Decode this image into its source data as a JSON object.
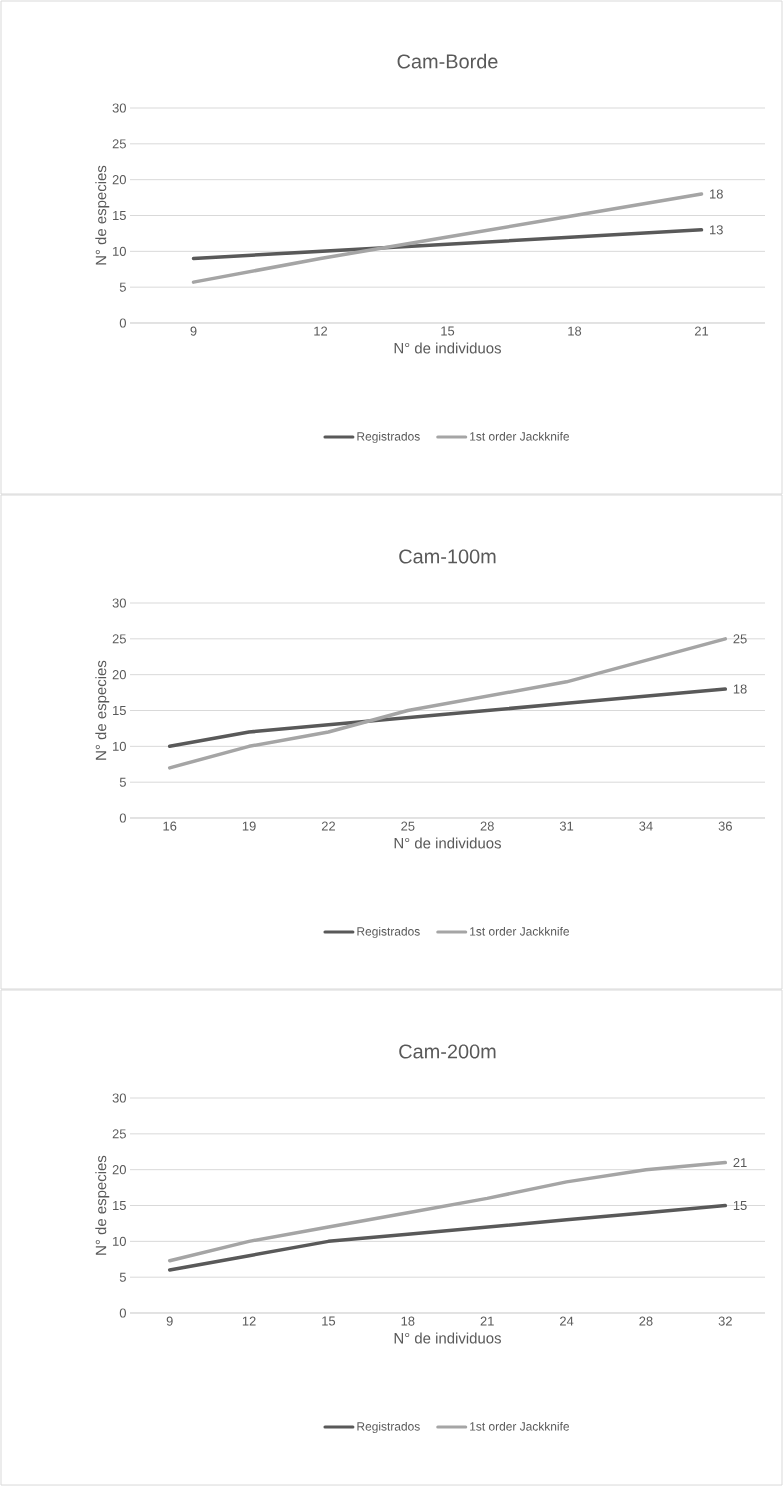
{
  "chart_data": [
    {
      "type": "line",
      "title": "Cam-Borde",
      "xlabel": "N° de individuos",
      "ylabel": "N° de especies",
      "categories": [
        "9",
        "12",
        "15",
        "18",
        "21"
      ],
      "ylim": [
        0,
        30
      ],
      "yticks": [
        0,
        5,
        10,
        15,
        20,
        25,
        30
      ],
      "grid": "y",
      "legend": "bottom",
      "series": [
        {
          "name": "Registrados",
          "color": "#595959",
          "values": [
            9,
            10,
            11,
            12,
            13
          ],
          "value_labels": [
            null,
            null,
            null,
            null,
            "13"
          ]
        },
        {
          "name": "1st order Jackknife",
          "color": "#a5a5a5",
          "values": [
            5.7,
            9,
            12,
            15,
            18
          ],
          "value_labels": [
            null,
            null,
            null,
            null,
            "18"
          ]
        }
      ]
    },
    {
      "type": "line",
      "title": "Cam-100m",
      "xlabel": "N° de individuos",
      "ylabel": "N° de especies",
      "categories": [
        "16",
        "19",
        "22",
        "25",
        "28",
        "31",
        "34",
        "36"
      ],
      "ylim": [
        0,
        30
      ],
      "yticks": [
        0,
        5,
        10,
        15,
        20,
        25,
        30
      ],
      "grid": "y",
      "legend": "bottom",
      "series": [
        {
          "name": "Registrados",
          "color": "#595959",
          "values": [
            10,
            12,
            13,
            14,
            15,
            16,
            17,
            18
          ],
          "value_labels": [
            null,
            null,
            null,
            null,
            null,
            null,
            null,
            "18"
          ]
        },
        {
          "name": "1st order Jackknife",
          "color": "#a5a5a5",
          "values": [
            7,
            10,
            12,
            15,
            17,
            19,
            22,
            25
          ],
          "value_labels": [
            null,
            null,
            null,
            null,
            null,
            null,
            null,
            "25"
          ]
        }
      ]
    },
    {
      "type": "line",
      "title": "Cam-200m",
      "xlabel": "N° de individuos",
      "ylabel": "N° de especies",
      "categories": [
        "9",
        "12",
        "15",
        "18",
        "21",
        "24",
        "28",
        "32"
      ],
      "ylim": [
        0,
        30
      ],
      "yticks": [
        0,
        5,
        10,
        15,
        20,
        25,
        30
      ],
      "grid": "y",
      "legend": "bottom",
      "series": [
        {
          "name": "Registrados",
          "color": "#595959",
          "values": [
            6,
            8,
            10,
            11,
            12,
            13,
            14,
            15
          ],
          "value_labels": [
            null,
            null,
            null,
            null,
            null,
            null,
            null,
            "15"
          ]
        },
        {
          "name": "1st order Jackknife",
          "color": "#a5a5a5",
          "values": [
            7.3,
            10,
            12,
            14,
            16,
            18.3,
            20,
            21
          ],
          "value_labels": [
            null,
            null,
            null,
            null,
            null,
            null,
            null,
            "21"
          ]
        }
      ]
    }
  ]
}
